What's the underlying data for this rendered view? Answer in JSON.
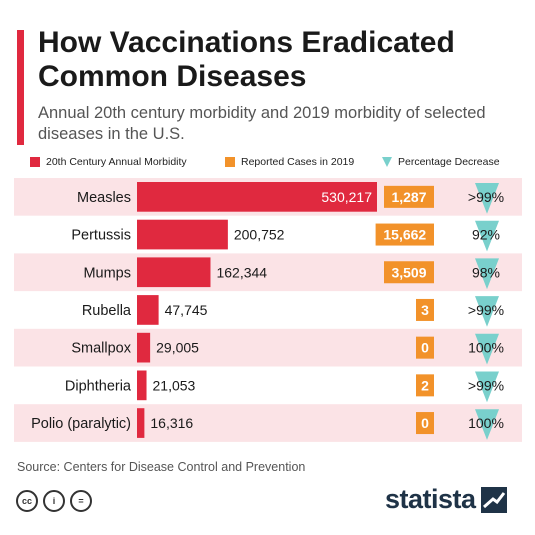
{
  "header": {
    "title": "How Vaccinations Eradicated Common Diseases",
    "subtitle": "Annual 20th century morbidity and 2019 morbidity of selected diseases in the U.S."
  },
  "legend": {
    "morbidity": "20th Century Annual Morbidity",
    "reported": "Reported Cases in 2019",
    "decrease": "Percentage Decrease"
  },
  "colors": {
    "morbidity": "#e0293f",
    "reported": "#f2922a",
    "decrease": "#79d0cc",
    "band": "#fbe3e6"
  },
  "chart_data": {
    "type": "bar",
    "categories": [
      "Measles",
      "Pertussis",
      "Mumps",
      "Rubella",
      "Smallpox",
      "Diphtheria",
      "Polio (paralytic)"
    ],
    "series": [
      {
        "name": "20th Century Annual Morbidity",
        "values": [
          530217,
          200752,
          162344,
          47745,
          29005,
          21053,
          16316
        ],
        "labels": [
          "530,217",
          "200,752",
          "162,344",
          "47,745",
          "29,005",
          "21,053",
          "16,316"
        ]
      },
      {
        "name": "Reported Cases in 2019",
        "values": [
          1287,
          15662,
          3509,
          3,
          0,
          2,
          0
        ],
        "labels": [
          "1,287",
          "15,662",
          "3,509",
          "3",
          "0",
          "2",
          "0"
        ]
      },
      {
        "name": "Percentage Decrease",
        "labels": [
          ">99%",
          "92%",
          "98%",
          ">99%",
          "100%",
          ">99%",
          "100%"
        ]
      }
    ]
  },
  "footer": {
    "source": "Source: Centers for Disease Control and Prevention",
    "brand": "statista",
    "license_icons": [
      "cc-icon",
      "by-icon",
      "nd-icon"
    ],
    "license_icon_text": [
      "cc",
      "i",
      "="
    ]
  }
}
